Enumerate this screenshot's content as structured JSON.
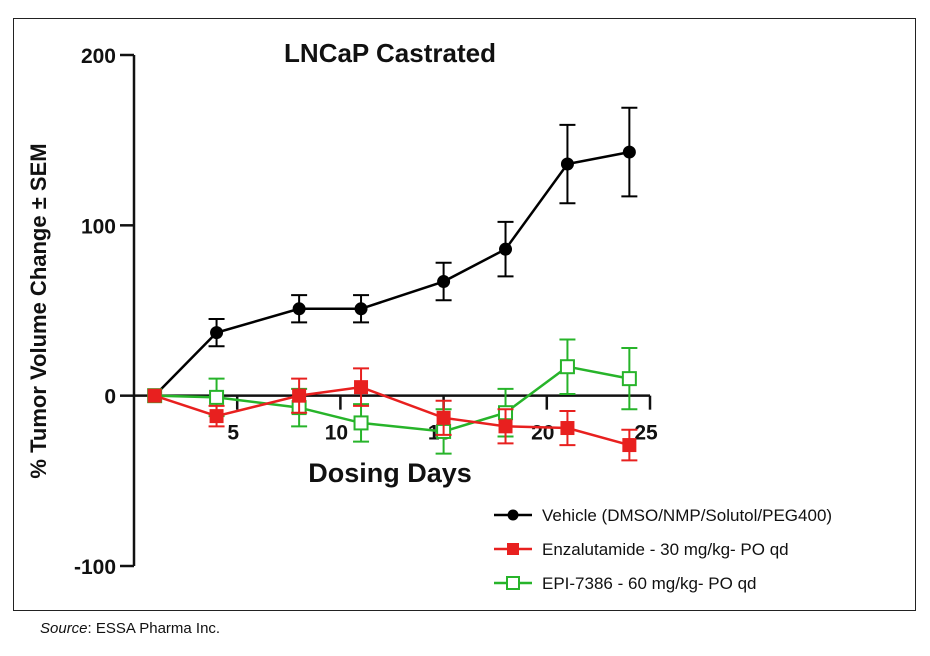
{
  "chart_data": {
    "type": "line",
    "title": "LNCaP Castrated",
    "xlabel": "Dosing Days",
    "ylabel": "% Tumor Volume Change ± SEM",
    "ylim": [
      -100,
      200
    ],
    "xlim": [
      0,
      25
    ],
    "yticks": [
      -100,
      0,
      100,
      200
    ],
    "xticks": [
      5,
      10,
      15,
      20,
      25
    ],
    "series": [
      {
        "name": "Vehicle (DMSO/NMP/Solutol/PEG400)",
        "color": "#000000",
        "marker": "circle-filled",
        "x": [
          1,
          4,
          8,
          11,
          15,
          18,
          21,
          24
        ],
        "y": [
          0,
          37,
          51,
          51,
          67,
          86,
          136,
          143
        ],
        "err": [
          0,
          8,
          8,
          8,
          11,
          16,
          23,
          26
        ]
      },
      {
        "name": "Enzalutamide - 30 mg/kg- PO qd",
        "color": "#e8201f",
        "marker": "square-filled",
        "x": [
          1,
          4,
          8,
          11,
          15,
          18,
          21,
          24
        ],
        "y": [
          0,
          -12,
          0,
          5,
          -13,
          -18,
          -19,
          -29
        ],
        "err": [
          0,
          6,
          10,
          11,
          10,
          10,
          10,
          9
        ]
      },
      {
        "name": "EPI-7386 - 60 mg/kg- PO qd",
        "color": "#27b42a",
        "marker": "square-open",
        "x": [
          1,
          4,
          8,
          11,
          15,
          18,
          21,
          24
        ],
        "y": [
          0,
          -1,
          -7,
          -16,
          -21,
          -10,
          17,
          10
        ],
        "err": [
          0,
          11,
          11,
          11,
          13,
          14,
          16,
          18
        ]
      }
    ]
  },
  "source": {
    "prefix": "Source",
    "suffix": ": ESSA Pharma Inc."
  }
}
